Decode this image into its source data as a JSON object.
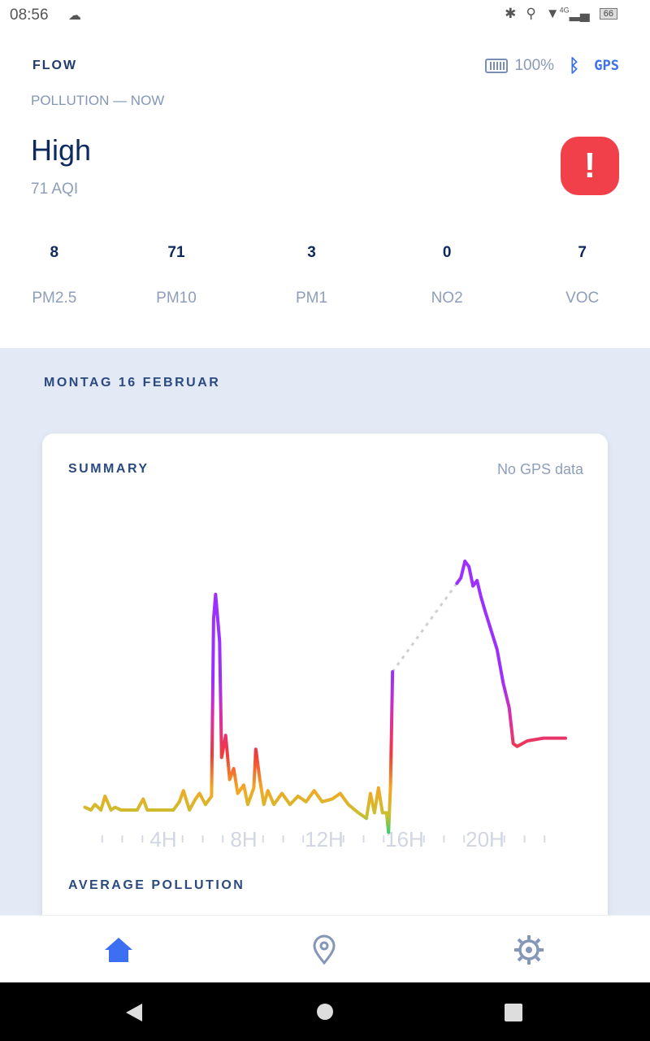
{
  "status_bar": {
    "time": "08:56",
    "battery": "66",
    "network": "4G"
  },
  "header": {
    "brand": "FLOW",
    "device_battery": "100%",
    "gps_label": "GPS",
    "subtitle": "POLLUTION — NOW",
    "level": "High",
    "aqi": "71 AQI",
    "alert_symbol": "!",
    "alert_color": "#f2404a"
  },
  "metrics": [
    {
      "value": "8",
      "label": "PM2.5"
    },
    {
      "value": "71",
      "label": "PM10"
    },
    {
      "value": "3",
      "label": "PM1"
    },
    {
      "value": "0",
      "label": "NO2"
    },
    {
      "value": "7",
      "label": "VOC"
    }
  ],
  "day": {
    "date": "MONTAG 16 FEBRUAR"
  },
  "summary": {
    "title": "SUMMARY",
    "gps_status": "No GPS data",
    "average_title": "AVERAGE POLLUTION"
  },
  "chart_data": {
    "type": "line",
    "x_ticks": [
      "4H",
      "8H",
      "12H",
      "16H",
      "20H"
    ],
    "x_tick_hours": [
      4,
      8,
      12,
      16,
      20
    ],
    "xlim": [
      0,
      24
    ],
    "y_axis": "none (relative pollution level 0-100)",
    "colors": {
      "high": "#9b30ff",
      "elevated": "#e0309a",
      "moderate": "#f03a3a",
      "low": "#f5a623",
      "good": "#c8c030",
      "very_good": "#10d080"
    },
    "segments": [
      [
        [
          0.1,
          11
        ],
        [
          0.4,
          10
        ],
        [
          0.6,
          12
        ],
        [
          0.9,
          10
        ],
        [
          1.1,
          15
        ],
        [
          1.4,
          10
        ],
        [
          1.6,
          11
        ],
        [
          1.9,
          10
        ],
        [
          2.7,
          10
        ],
        [
          3.0,
          14
        ],
        [
          3.2,
          10
        ],
        [
          4.5,
          10
        ],
        [
          4.8,
          13
        ],
        [
          5.0,
          17
        ],
        [
          5.3,
          10
        ],
        [
          5.6,
          14
        ],
        [
          5.8,
          16
        ],
        [
          6.1,
          12
        ],
        [
          6.4,
          15
        ],
        [
          6.5,
          79
        ],
        [
          6.6,
          88
        ],
        [
          6.8,
          71
        ],
        [
          6.9,
          29
        ],
        [
          7.1,
          37
        ],
        [
          7.3,
          21
        ],
        [
          7.5,
          25
        ],
        [
          7.7,
          16
        ],
        [
          8.0,
          19
        ],
        [
          8.2,
          12
        ],
        [
          8.5,
          18
        ],
        [
          8.6,
          32
        ],
        [
          8.8,
          21
        ],
        [
          9.0,
          12
        ],
        [
          9.2,
          17
        ],
        [
          9.5,
          12
        ],
        [
          9.9,
          16
        ],
        [
          10.3,
          12
        ],
        [
          10.7,
          15
        ],
        [
          11.1,
          13
        ],
        [
          11.5,
          17
        ],
        [
          11.9,
          13
        ],
        [
          12.4,
          14
        ],
        [
          12.8,
          16
        ],
        [
          13.2,
          12
        ],
        [
          13.7,
          9
        ],
        [
          14.1,
          7
        ],
        [
          14.3,
          16
        ],
        [
          14.5,
          9
        ],
        [
          14.7,
          18
        ],
        [
          14.9,
          9
        ],
        [
          15.1,
          9
        ],
        [
          15.2,
          2
        ],
        [
          15.3,
          19
        ],
        [
          15.4,
          60
        ]
      ],
      [
        [
          18.6,
          92
        ],
        [
          18.8,
          94
        ],
        [
          19.0,
          100
        ],
        [
          19.2,
          98
        ],
        [
          19.4,
          91
        ],
        [
          19.6,
          93
        ],
        [
          19.8,
          87
        ],
        [
          20.0,
          82
        ],
        [
          20.3,
          75
        ],
        [
          20.6,
          68
        ],
        [
          20.9,
          56
        ],
        [
          21.2,
          47
        ],
        [
          21.4,
          34
        ],
        [
          21.6,
          33
        ],
        [
          22.1,
          35
        ],
        [
          22.9,
          36
        ],
        [
          23.5,
          36
        ],
        [
          24.0,
          36
        ]
      ]
    ],
    "gap": {
      "from": [
        15.4,
        60
      ],
      "to": [
        18.6,
        92
      ],
      "style": "dotted"
    }
  },
  "nav": {
    "items": [
      "home-icon",
      "location-icon",
      "settings-icon"
    ],
    "active": "home-icon",
    "active_color": "#3d6ff2"
  }
}
